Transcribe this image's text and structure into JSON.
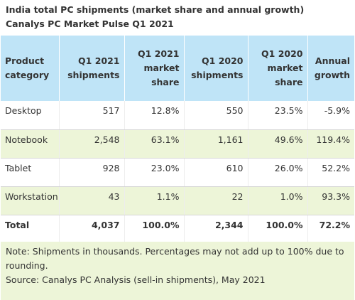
{
  "title": {
    "line1": "India total PC shipments (market share and annual growth)",
    "line2": "Canalys PC Market Pulse Q1 2021"
  },
  "table": {
    "headers": [
      [
        "Product",
        "category"
      ],
      [
        "Q1 2021",
        "shipments"
      ],
      [
        "Q1 2021",
        "market",
        "share"
      ],
      [
        "Q1 2020",
        "shipments"
      ],
      [
        "Q1 2020",
        "market",
        "share"
      ],
      [
        "Annual",
        "growth"
      ]
    ],
    "rows": [
      [
        "Desktop",
        "517",
        "12.8%",
        "550",
        "23.5%",
        "-5.9%"
      ],
      [
        "Notebook",
        "2,548",
        "63.1%",
        "1,161",
        "49.6%",
        "119.4%"
      ],
      [
        "Tablet",
        "928",
        "23.0%",
        "610",
        "26.0%",
        "52.2%"
      ],
      [
        "Workstation",
        "43",
        "1.1%",
        "22",
        "1.0%",
        "93.3%"
      ],
      [
        "Total",
        "4,037",
        "100.0%",
        "2,344",
        "100.0%",
        "72.2%"
      ]
    ]
  },
  "note": {
    "line1": "Note: Shipments in thousands. Percentages may not add up to 100% due to",
    "line2": "rounding.",
    "line3": "Source: Canalys PC Analysis (sell-in shipments), May 2021"
  },
  "colors": {
    "header_bg": "#bfe4f7",
    "alt_row_bg": "#edf5d8",
    "text": "#333333"
  }
}
